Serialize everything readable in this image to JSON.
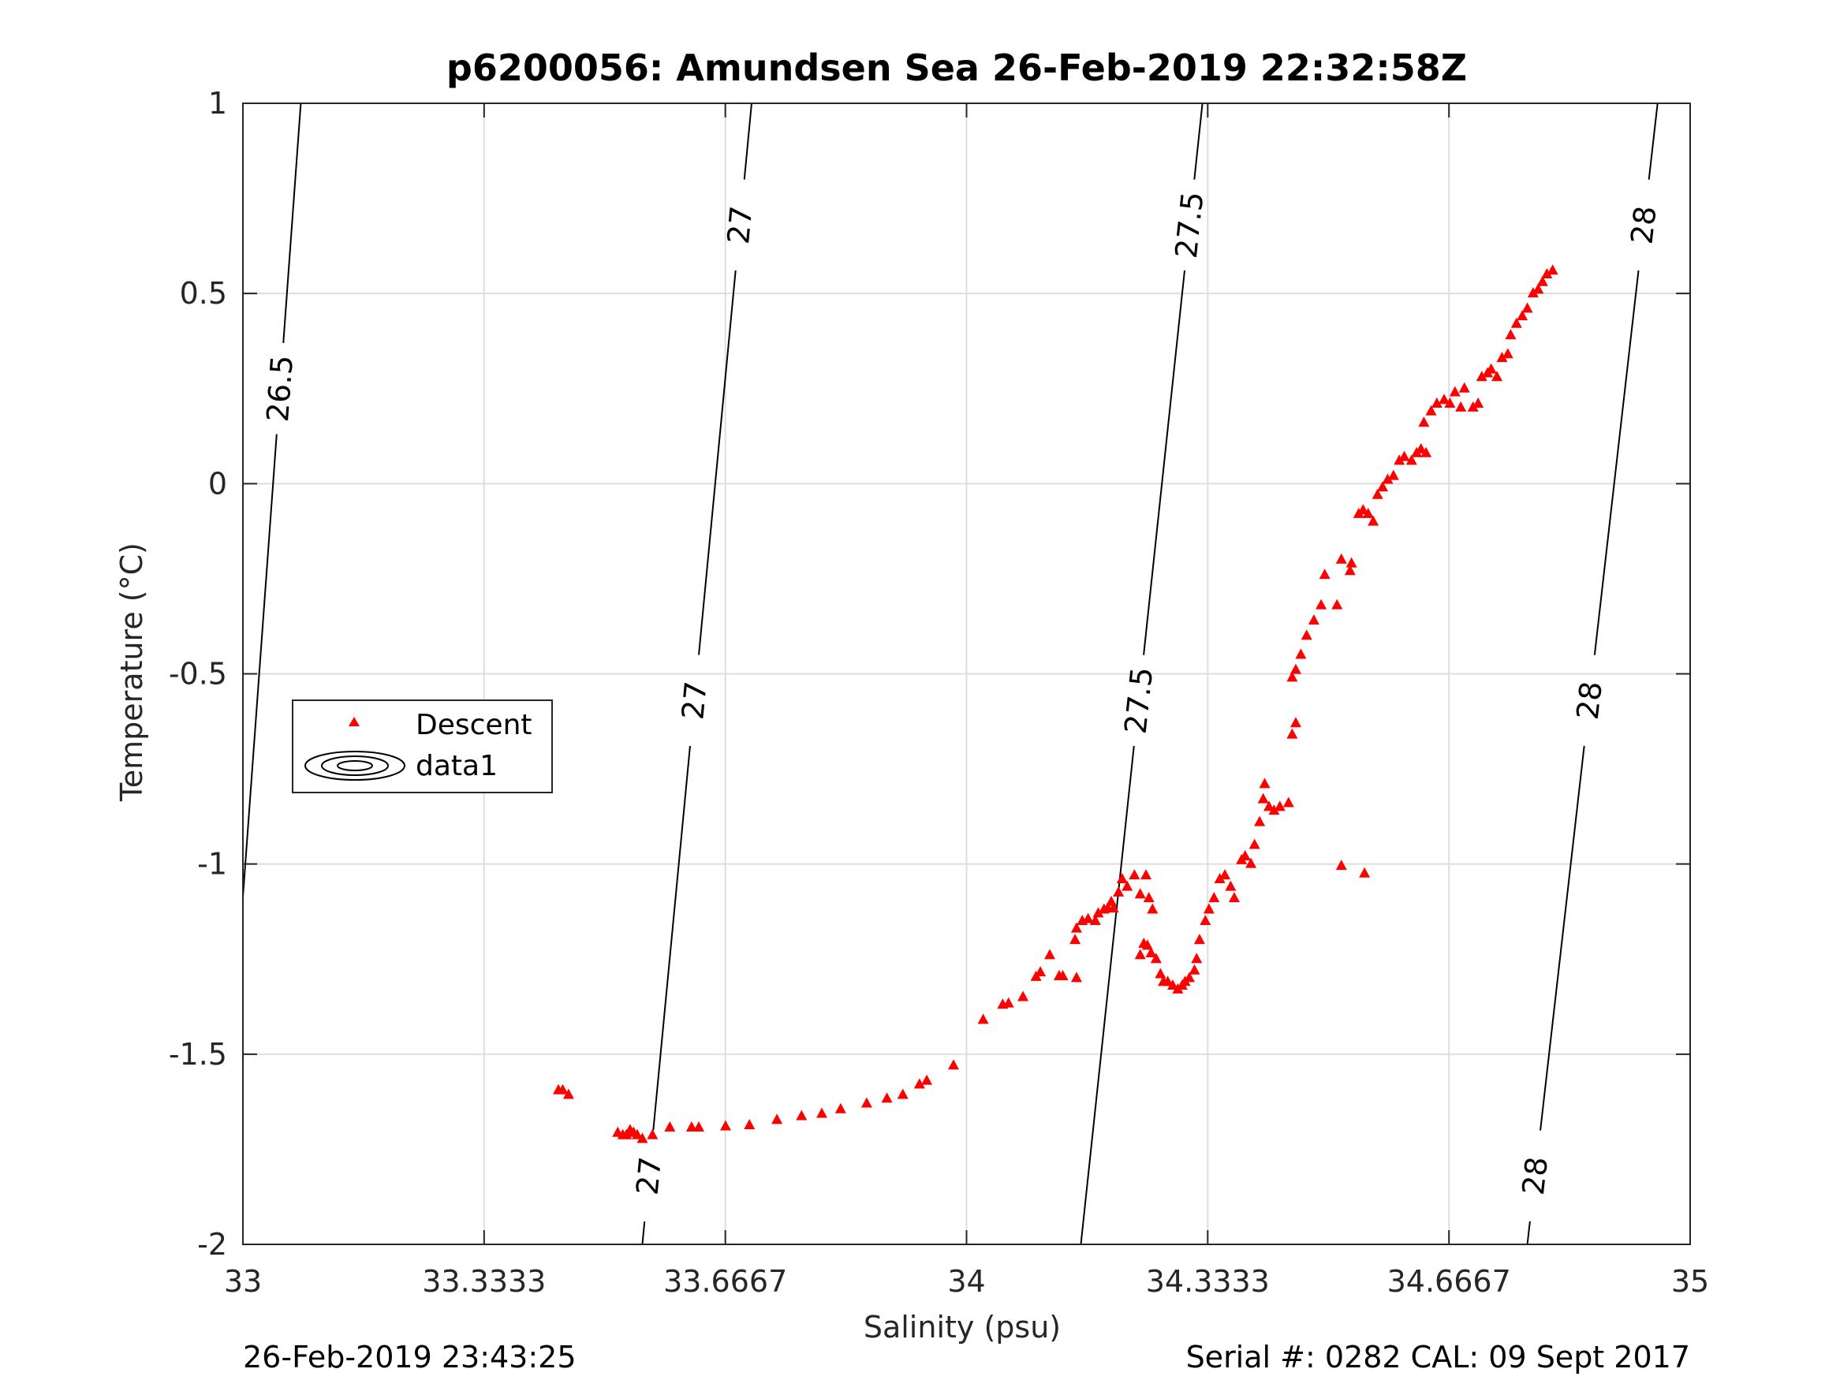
{
  "chart_data": {
    "type": "scatter",
    "title": "p6200056: Amundsen Sea 26-Feb-2019 22:32:58Z",
    "xlabel": "Salinity (psu)",
    "ylabel": "Temperature (°C)",
    "xlim": [
      33,
      35
    ],
    "ylim": [
      -2,
      1
    ],
    "x_ticks": [
      33,
      33.3333,
      33.6667,
      34,
      34.3333,
      34.6667,
      35
    ],
    "x_tick_labels": [
      "33",
      "33.3333",
      "33.6667",
      "34",
      "34.3333",
      "34.6667",
      "35"
    ],
    "y_ticks": [
      -2,
      -1.5,
      -1,
      -0.5,
      0,
      0.5,
      1
    ],
    "y_tick_labels": [
      "-2",
      "-1.5",
      "-1",
      "-0.5",
      "0",
      "0.5",
      "1"
    ],
    "grid": true,
    "legend": {
      "placement": "middle-left",
      "entries": [
        "Descent",
        "data1"
      ]
    },
    "colors": {
      "descent": "#ff0000",
      "contour": "#000000",
      "grid": "#dedede"
    },
    "series": [
      {
        "name": "Descent",
        "marker": "triangle",
        "points": [
          [
            33.436,
            -1.595
          ],
          [
            33.442,
            -1.595
          ],
          [
            33.45,
            -1.607
          ],
          [
            33.518,
            -1.707
          ],
          [
            33.525,
            -1.713
          ],
          [
            33.53,
            -1.713
          ],
          [
            33.535,
            -1.7
          ],
          [
            33.54,
            -1.707
          ],
          [
            33.545,
            -1.713
          ],
          [
            33.552,
            -1.723
          ],
          [
            33.566,
            -1.713
          ],
          [
            33.59,
            -1.693
          ],
          [
            33.62,
            -1.693
          ],
          [
            33.63,
            -1.693
          ],
          [
            33.667,
            -1.69
          ],
          [
            33.7,
            -1.687
          ],
          [
            33.738,
            -1.673
          ],
          [
            33.772,
            -1.663
          ],
          [
            33.8,
            -1.657
          ],
          [
            33.826,
            -1.645
          ],
          [
            33.862,
            -1.63
          ],
          [
            33.89,
            -1.617
          ],
          [
            33.912,
            -1.607
          ],
          [
            33.935,
            -1.58
          ],
          [
            33.945,
            -1.57
          ],
          [
            33.982,
            -1.53
          ],
          [
            34.023,
            -1.41
          ],
          [
            34.05,
            -1.37
          ],
          [
            34.058,
            -1.367
          ],
          [
            34.078,
            -1.35
          ],
          [
            34.096,
            -1.297
          ],
          [
            34.102,
            -1.285
          ],
          [
            34.115,
            -1.24
          ],
          [
            34.128,
            -1.295
          ],
          [
            34.133,
            -1.295
          ],
          [
            34.152,
            -1.3
          ],
          [
            34.15,
            -1.2
          ],
          [
            34.152,
            -1.17
          ],
          [
            34.16,
            -1.15
          ],
          [
            34.168,
            -1.145
          ],
          [
            34.178,
            -1.15
          ],
          [
            34.182,
            -1.13
          ],
          [
            34.19,
            -1.12
          ],
          [
            34.195,
            -1.117
          ],
          [
            34.203,
            -1.117
          ],
          [
            34.2,
            -1.1
          ],
          [
            34.21,
            -1.075
          ],
          [
            34.215,
            -1.04
          ],
          [
            34.222,
            -1.06
          ],
          [
            34.232,
            -1.03
          ],
          [
            34.24,
            -1.08
          ],
          [
            34.248,
            -1.03
          ],
          [
            34.252,
            -1.09
          ],
          [
            34.257,
            -1.12
          ],
          [
            34.245,
            -1.21
          ],
          [
            34.24,
            -1.24
          ],
          [
            34.25,
            -1.215
          ],
          [
            34.255,
            -1.235
          ],
          [
            34.262,
            -1.25
          ],
          [
            34.268,
            -1.29
          ],
          [
            34.272,
            -1.31
          ],
          [
            34.278,
            -1.31
          ],
          [
            34.285,
            -1.32
          ],
          [
            34.292,
            -1.33
          ],
          [
            34.298,
            -1.32
          ],
          [
            34.302,
            -1.31
          ],
          [
            34.308,
            -1.3
          ],
          [
            34.315,
            -1.28
          ],
          [
            34.318,
            -1.25
          ],
          [
            34.322,
            -1.2
          ],
          [
            34.33,
            -1.15
          ],
          [
            34.335,
            -1.12
          ],
          [
            34.342,
            -1.09
          ],
          [
            34.35,
            -1.04
          ],
          [
            34.357,
            -1.03
          ],
          [
            34.365,
            -1.06
          ],
          [
            34.37,
            -1.09
          ],
          [
            34.38,
            -0.99
          ],
          [
            34.385,
            -0.98
          ],
          [
            34.393,
            -1.0
          ],
          [
            34.398,
            -0.95
          ],
          [
            34.405,
            -0.89
          ],
          [
            34.41,
            -0.83
          ],
          [
            34.412,
            -0.79
          ],
          [
            34.418,
            -0.85
          ],
          [
            34.425,
            -0.86
          ],
          [
            34.433,
            -0.85
          ],
          [
            34.445,
            -0.84
          ],
          [
            34.45,
            -0.66
          ],
          [
            34.455,
            -0.63
          ],
          [
            34.45,
            -0.51
          ],
          [
            34.455,
            -0.49
          ],
          [
            34.462,
            -0.45
          ],
          [
            34.47,
            -0.4
          ],
          [
            34.48,
            -0.36
          ],
          [
            34.49,
            -0.32
          ],
          [
            34.495,
            -0.24
          ],
          [
            34.512,
            -0.32
          ],
          [
            34.518,
            -0.2
          ],
          [
            34.53,
            -0.23
          ],
          [
            34.532,
            -0.21
          ],
          [
            34.542,
            -0.08
          ],
          [
            34.548,
            -0.07
          ],
          [
            34.555,
            -0.08
          ],
          [
            34.562,
            -0.1
          ],
          [
            34.568,
            -0.03
          ],
          [
            34.575,
            -0.01
          ],
          [
            34.582,
            0.01
          ],
          [
            34.59,
            0.02
          ],
          [
            34.598,
            0.06
          ],
          [
            34.605,
            0.07
          ],
          [
            34.615,
            0.06
          ],
          [
            34.622,
            0.08
          ],
          [
            34.628,
            0.09
          ],
          [
            34.635,
            0.08
          ],
          [
            34.632,
            0.16
          ],
          [
            34.642,
            0.19
          ],
          [
            34.65,
            0.21
          ],
          [
            34.66,
            0.22
          ],
          [
            34.668,
            0.21
          ],
          [
            34.675,
            0.24
          ],
          [
            34.688,
            0.25
          ],
          [
            34.683,
            0.2
          ],
          [
            34.7,
            0.2
          ],
          [
            34.707,
            0.21
          ],
          [
            34.712,
            0.28
          ],
          [
            34.72,
            0.29
          ],
          [
            34.725,
            0.3
          ],
          [
            34.733,
            0.28
          ],
          [
            34.74,
            0.33
          ],
          [
            34.748,
            0.34
          ],
          [
            34.752,
            0.39
          ],
          [
            34.76,
            0.42
          ],
          [
            34.768,
            0.44
          ],
          [
            34.775,
            0.46
          ],
          [
            34.783,
            0.5
          ],
          [
            34.79,
            0.51
          ],
          [
            34.796,
            0.53
          ],
          [
            34.802,
            0.55
          ],
          [
            34.81,
            0.56
          ],
          [
            34.518,
            -1.005
          ],
          [
            34.55,
            -1.025
          ]
        ]
      }
    ],
    "contours": {
      "name": "data1",
      "levels": [
        {
          "value": 26.5,
          "label": "26.5",
          "s_at_t_min": 32.965,
          "s_at_t_max": 33.08
        },
        {
          "value": 27,
          "label": "27",
          "s_at_t_min": 33.552,
          "s_at_t_max": 33.703
        },
        {
          "value": 27.5,
          "label": "27.5",
          "s_at_t_min": 34.158,
          "s_at_t_max": 34.326
        },
        {
          "value": 28,
          "label": "28",
          "s_at_t_min": 34.775,
          "s_at_t_max": 34.955
        }
      ],
      "label_positions": [
        {
          "label": "26.5",
          "t": 0.25
        },
        {
          "label": "27",
          "t": 0.68
        },
        {
          "label": "27",
          "t": -0.57
        },
        {
          "label": "27",
          "t": -1.82
        },
        {
          "label": "27.5",
          "t": 0.68
        },
        {
          "label": "27.5",
          "t": -0.57
        },
        {
          "label": "28",
          "t": 0.68
        },
        {
          "label": "28",
          "t": -0.57
        },
        {
          "label": "28",
          "t": -1.82
        }
      ]
    }
  },
  "footer": {
    "left": "26-Feb-2019 23:43:25",
    "right": "Serial #: 0282  CAL: 09 Sept 2017"
  }
}
